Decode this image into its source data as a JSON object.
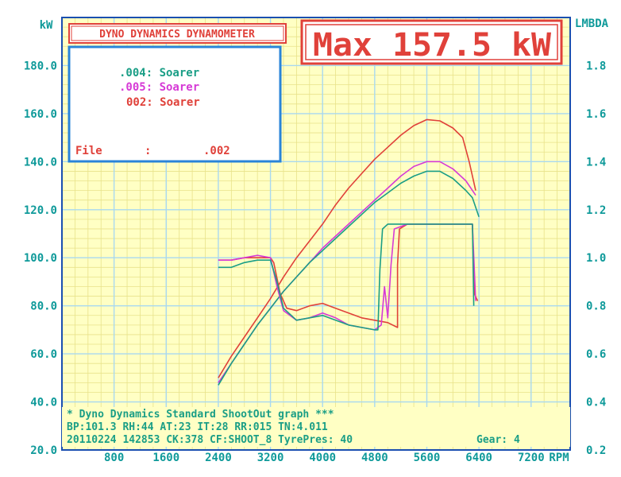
{
  "colors": {
    "plot_bg": "#ffffc4",
    "grid_fine": "#e8e28a",
    "grid_major": "#a8d8f0",
    "frame": "#1a4fb0",
    "axis_text": "#0f9a9a",
    "red": "#e0413a",
    "magenta": "#d63ad6",
    "teal": "#1a9e86",
    "legend_border": "#2a84d8"
  },
  "title_box": {
    "label": "DYNO DYNAMICS DYNAMOMETER"
  },
  "max_box": {
    "label": "Max 157.5 kW"
  },
  "legend": {
    "entries": [
      {
        "text": ".004: Soarer",
        "color": "#1a9e86"
      },
      {
        "text": ".005: Soarer",
        "color": "#d63ad6"
      },
      {
        "text": "002: Soarer",
        "color": "#e0413a"
      }
    ],
    "file_label": "File",
    "file_colon": ":",
    "file_value": ".002"
  },
  "footer": {
    "line1": "* Dyno Dynamics Standard ShootOut graph ***",
    "line2": "BP:101.3 RH:44 AT:23 IT:28  RR:015 TN:4.011",
    "line3": "20110224 142853 CK:378 CF:SHOOT_8  TyrePres: 40",
    "gear": "Gear: 4"
  },
  "chart_data": {
    "type": "line",
    "x_unit": "RPM",
    "y_left_unit": "kW",
    "y_right_unit": "LMBDA",
    "x_ticks": [
      "800",
      "1600",
      "2400",
      "3200",
      "4000",
      "4800",
      "5600",
      "6400",
      "7200"
    ],
    "y_left_ticks": [
      "20.0",
      "40.0",
      "60.0",
      "80.0",
      "100.0",
      "120.0",
      "140.0",
      "160.0",
      "180.0"
    ],
    "y_right_ticks": [
      "0.2",
      "0.4",
      "0.6",
      "0.8",
      "1.0",
      "1.2",
      "1.4",
      "1.6",
      "1.8"
    ],
    "xlim": [
      0,
      7800
    ],
    "ylim_left": [
      20,
      200
    ],
    "ylim_right": [
      0.2,
      2.0
    ],
    "grid": true,
    "series": [
      {
        "name": "002: Soarer",
        "kind": "power",
        "axis": "left",
        "color": "#e0413a",
        "points": [
          [
            2400,
            50
          ],
          [
            2600,
            59
          ],
          [
            2800,
            67
          ],
          [
            3000,
            75
          ],
          [
            3200,
            83
          ],
          [
            3400,
            92
          ],
          [
            3600,
            100
          ],
          [
            3800,
            107
          ],
          [
            4000,
            114
          ],
          [
            4200,
            122
          ],
          [
            4400,
            129
          ],
          [
            4600,
            135
          ],
          [
            4800,
            141
          ],
          [
            5000,
            146
          ],
          [
            5200,
            151
          ],
          [
            5400,
            155
          ],
          [
            5600,
            157.5
          ],
          [
            5800,
            157
          ],
          [
            6000,
            154
          ],
          [
            6150,
            150
          ],
          [
            6250,
            140
          ],
          [
            6350,
            128
          ]
        ]
      },
      {
        "name": ".005: Soarer",
        "kind": "power",
        "axis": "left",
        "color": "#d63ad6",
        "points": [
          [
            2400,
            48
          ],
          [
            2600,
            56
          ],
          [
            2800,
            64
          ],
          [
            3000,
            72
          ],
          [
            3200,
            79
          ],
          [
            3400,
            86
          ],
          [
            3600,
            92
          ],
          [
            3800,
            98
          ],
          [
            4000,
            104
          ],
          [
            4200,
            109
          ],
          [
            4400,
            114
          ],
          [
            4600,
            119
          ],
          [
            4800,
            124
          ],
          [
            5000,
            129
          ],
          [
            5200,
            134
          ],
          [
            5400,
            138
          ],
          [
            5600,
            140
          ],
          [
            5800,
            140
          ],
          [
            6000,
            137
          ],
          [
            6200,
            132
          ],
          [
            6350,
            126
          ]
        ]
      },
      {
        "name": ".004: Soarer",
        "kind": "power",
        "axis": "left",
        "color": "#1a9e86",
        "points": [
          [
            2400,
            47
          ],
          [
            2600,
            56
          ],
          [
            2800,
            64
          ],
          [
            3000,
            72
          ],
          [
            3200,
            79
          ],
          [
            3400,
            86
          ],
          [
            3600,
            92
          ],
          [
            3800,
            98
          ],
          [
            4000,
            103
          ],
          [
            4200,
            108
          ],
          [
            4400,
            113
          ],
          [
            4600,
            118
          ],
          [
            4800,
            123
          ],
          [
            5000,
            127
          ],
          [
            5200,
            131
          ],
          [
            5400,
            134
          ],
          [
            5600,
            136
          ],
          [
            5800,
            136
          ],
          [
            6000,
            133
          ],
          [
            6200,
            128
          ],
          [
            6300,
            125
          ],
          [
            6400,
            117
          ]
        ]
      },
      {
        "name": "002: Soarer",
        "kind": "lambda",
        "axis": "right",
        "color": "#e0413a",
        "points": [
          [
            2400,
            0.99
          ],
          [
            2600,
            0.99
          ],
          [
            2800,
            1.0
          ],
          [
            3000,
            1.0
          ],
          [
            3200,
            1.0
          ],
          [
            3250,
            0.98
          ],
          [
            3350,
            0.85
          ],
          [
            3450,
            0.79
          ],
          [
            3600,
            0.78
          ],
          [
            3800,
            0.8
          ],
          [
            4000,
            0.81
          ],
          [
            4200,
            0.79
          ],
          [
            4400,
            0.77
          ],
          [
            4600,
            0.75
          ],
          [
            4800,
            0.74
          ],
          [
            5000,
            0.73
          ],
          [
            5150,
            0.71
          ],
          [
            5150,
            0.97
          ],
          [
            5180,
            1.12
          ],
          [
            5300,
            1.14
          ],
          [
            5600,
            1.14
          ],
          [
            6000,
            1.14
          ],
          [
            6300,
            1.14
          ],
          [
            6330,
            0.85
          ],
          [
            6380,
            0.82
          ]
        ]
      },
      {
        "name": ".005: Soarer",
        "kind": "lambda",
        "axis": "right",
        "color": "#d63ad6",
        "points": [
          [
            2400,
            0.99
          ],
          [
            2600,
            0.99
          ],
          [
            2800,
            1.0
          ],
          [
            3000,
            1.01
          ],
          [
            3200,
            1.0
          ],
          [
            3300,
            0.88
          ],
          [
            3400,
            0.78
          ],
          [
            3600,
            0.74
          ],
          [
            3800,
            0.75
          ],
          [
            4000,
            0.77
          ],
          [
            4200,
            0.75
          ],
          [
            4400,
            0.72
          ],
          [
            4600,
            0.71
          ],
          [
            4800,
            0.7
          ],
          [
            4900,
            0.72
          ],
          [
            4950,
            0.88
          ],
          [
            5000,
            0.75
          ],
          [
            5050,
            0.97
          ],
          [
            5100,
            1.12
          ],
          [
            5300,
            1.14
          ],
          [
            5600,
            1.14
          ],
          [
            6000,
            1.14
          ],
          [
            6300,
            1.14
          ],
          [
            6350,
            0.82
          ]
        ]
      },
      {
        "name": ".004: Soarer",
        "kind": "lambda",
        "axis": "right",
        "color": "#1a9e86",
        "points": [
          [
            2400,
            0.96
          ],
          [
            2600,
            0.96
          ],
          [
            2800,
            0.98
          ],
          [
            3000,
            0.99
          ],
          [
            3200,
            0.99
          ],
          [
            3300,
            0.9
          ],
          [
            3400,
            0.79
          ],
          [
            3600,
            0.74
          ],
          [
            3800,
            0.75
          ],
          [
            4000,
            0.76
          ],
          [
            4200,
            0.74
          ],
          [
            4400,
            0.72
          ],
          [
            4600,
            0.71
          ],
          [
            4800,
            0.7
          ],
          [
            4850,
            0.7
          ],
          [
            4880,
            0.95
          ],
          [
            4920,
            1.12
          ],
          [
            5000,
            1.14
          ],
          [
            5400,
            1.14
          ],
          [
            6000,
            1.14
          ],
          [
            6250,
            1.14
          ],
          [
            6300,
            1.14
          ],
          [
            6320,
            0.8
          ]
        ]
      }
    ]
  }
}
